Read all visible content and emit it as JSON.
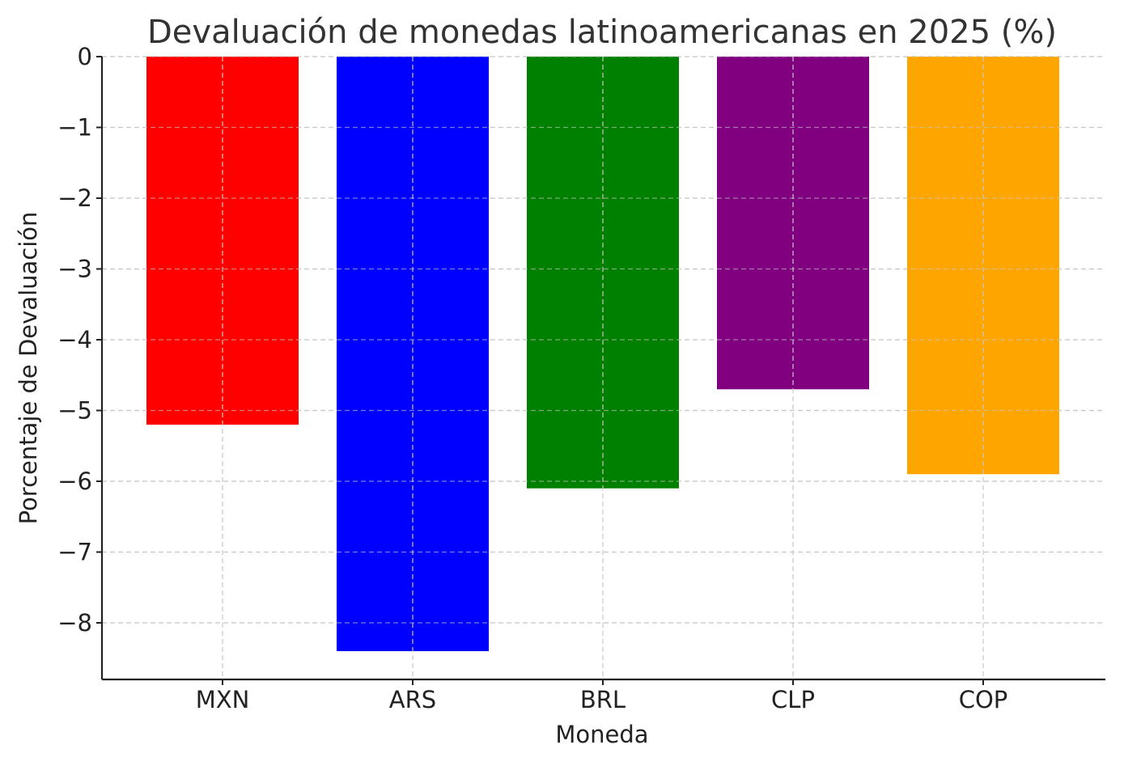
{
  "chart_data": {
    "type": "bar",
    "title": "Devaluación de monedas latinoamericanas en 2025 (%)",
    "xlabel": "Moneda",
    "ylabel": "Porcentaje de Devaluación",
    "categories": [
      "MXN",
      "ARS",
      "BRL",
      "CLP",
      "COP"
    ],
    "values": [
      -5.2,
      -8.4,
      -6.1,
      -4.7,
      -5.9
    ],
    "colors": [
      "#ff0000",
      "#0000ff",
      "#008000",
      "#800080",
      "#ffa500"
    ],
    "ylim": [
      -8.8,
      0
    ],
    "yticks": [
      0,
      -1,
      -2,
      -3,
      -4,
      -5,
      -6,
      -7,
      -8
    ],
    "ytick_labels": [
      "0",
      "−1",
      "−2",
      "−3",
      "−4",
      "−5",
      "−6",
      "−7",
      "−8"
    ],
    "grid": true
  }
}
